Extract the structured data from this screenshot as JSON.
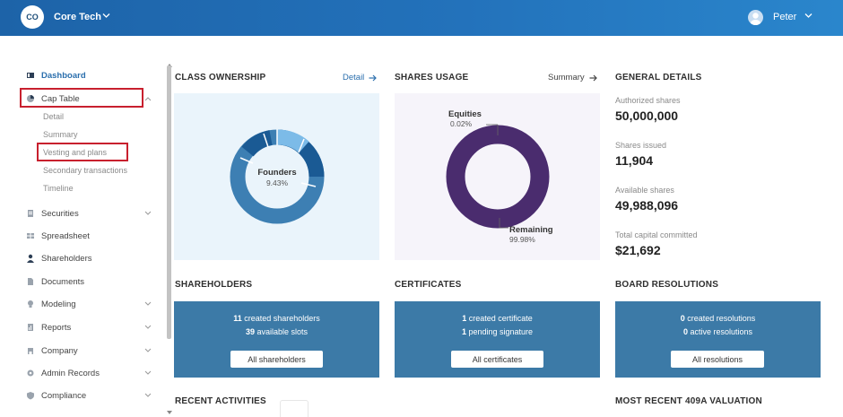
{
  "header": {
    "company_initials": "CO",
    "company_name": "Core Tech",
    "user_name": "Peter",
    "colors": {
      "bar_start": "#1d63a8",
      "bar_end": "#2a86cc"
    }
  },
  "sidebar": {
    "items": [
      {
        "label": "Dashboard",
        "icon": "dashboard-icon",
        "active": true
      },
      {
        "label": "Cap Table",
        "icon": "pie-chart-icon",
        "expanded": true
      },
      {
        "label": "Securities",
        "icon": "securities-icon"
      },
      {
        "label": "Spreadsheet",
        "icon": "spreadsheet-icon"
      },
      {
        "label": "Shareholders",
        "icon": "person-icon"
      },
      {
        "label": "Documents",
        "icon": "document-icon"
      },
      {
        "label": "Modeling",
        "icon": "lightbulb-icon"
      },
      {
        "label": "Reports",
        "icon": "reports-icon"
      },
      {
        "label": "Company",
        "icon": "building-icon"
      },
      {
        "label": "Admin Records",
        "icon": "gear-icon"
      },
      {
        "label": "Compliance",
        "icon": "shield-icon"
      }
    ],
    "cap_table_subitems": [
      "Detail",
      "Summary",
      "Vesting and plans",
      "Secondary transactions",
      "Timeline"
    ]
  },
  "class_ownership": {
    "title": "CLASS OWNERSHIP",
    "link": "Detail",
    "center_label": "Founders",
    "center_value": "9.43%"
  },
  "shares_usage": {
    "title": "SHARES USAGE",
    "link": "Summary",
    "label_top": "Equities",
    "value_top": "0.02%",
    "label_bottom": "Remaining",
    "value_bottom": "99.98%"
  },
  "general_details": {
    "title": "GENERAL DETAILS",
    "rows": [
      {
        "label": "Authorized shares",
        "value": "50,000,000"
      },
      {
        "label": "Shares issued",
        "value": "11,904"
      },
      {
        "label": "Available shares",
        "value": "49,988,096"
      },
      {
        "label": "Total capital committed",
        "value": "$21,692"
      }
    ]
  },
  "shareholders": {
    "title": "SHAREHOLDERS",
    "line1_num": "11",
    "line1_text": " created shareholders",
    "line2_num": "39",
    "line2_text": " available slots",
    "button": "All shareholders"
  },
  "certificates": {
    "title": "CERTIFICATES",
    "line1_num": "1",
    "line1_text": " created certificate",
    "line2_num": "1",
    "line2_text": " pending signature",
    "button": "All certificates"
  },
  "board_resolutions": {
    "title": "BOARD RESOLUTIONS",
    "line1_num": "0",
    "line1_text": " created resolutions",
    "line2_num": "0",
    "line2_text": " active resolutions",
    "button": "All resolutions"
  },
  "bottom_titles": {
    "recent_activities": "RECENT ACTIVITIES",
    "most_recent_409a": "MOST RECENT 409A VALUATION"
  },
  "colors": {
    "card_blue": "#3c7aa7",
    "link_blue": "#2b6fad",
    "donut_purple": "#4a2c6e",
    "highlight_red": "#c8202e"
  }
}
